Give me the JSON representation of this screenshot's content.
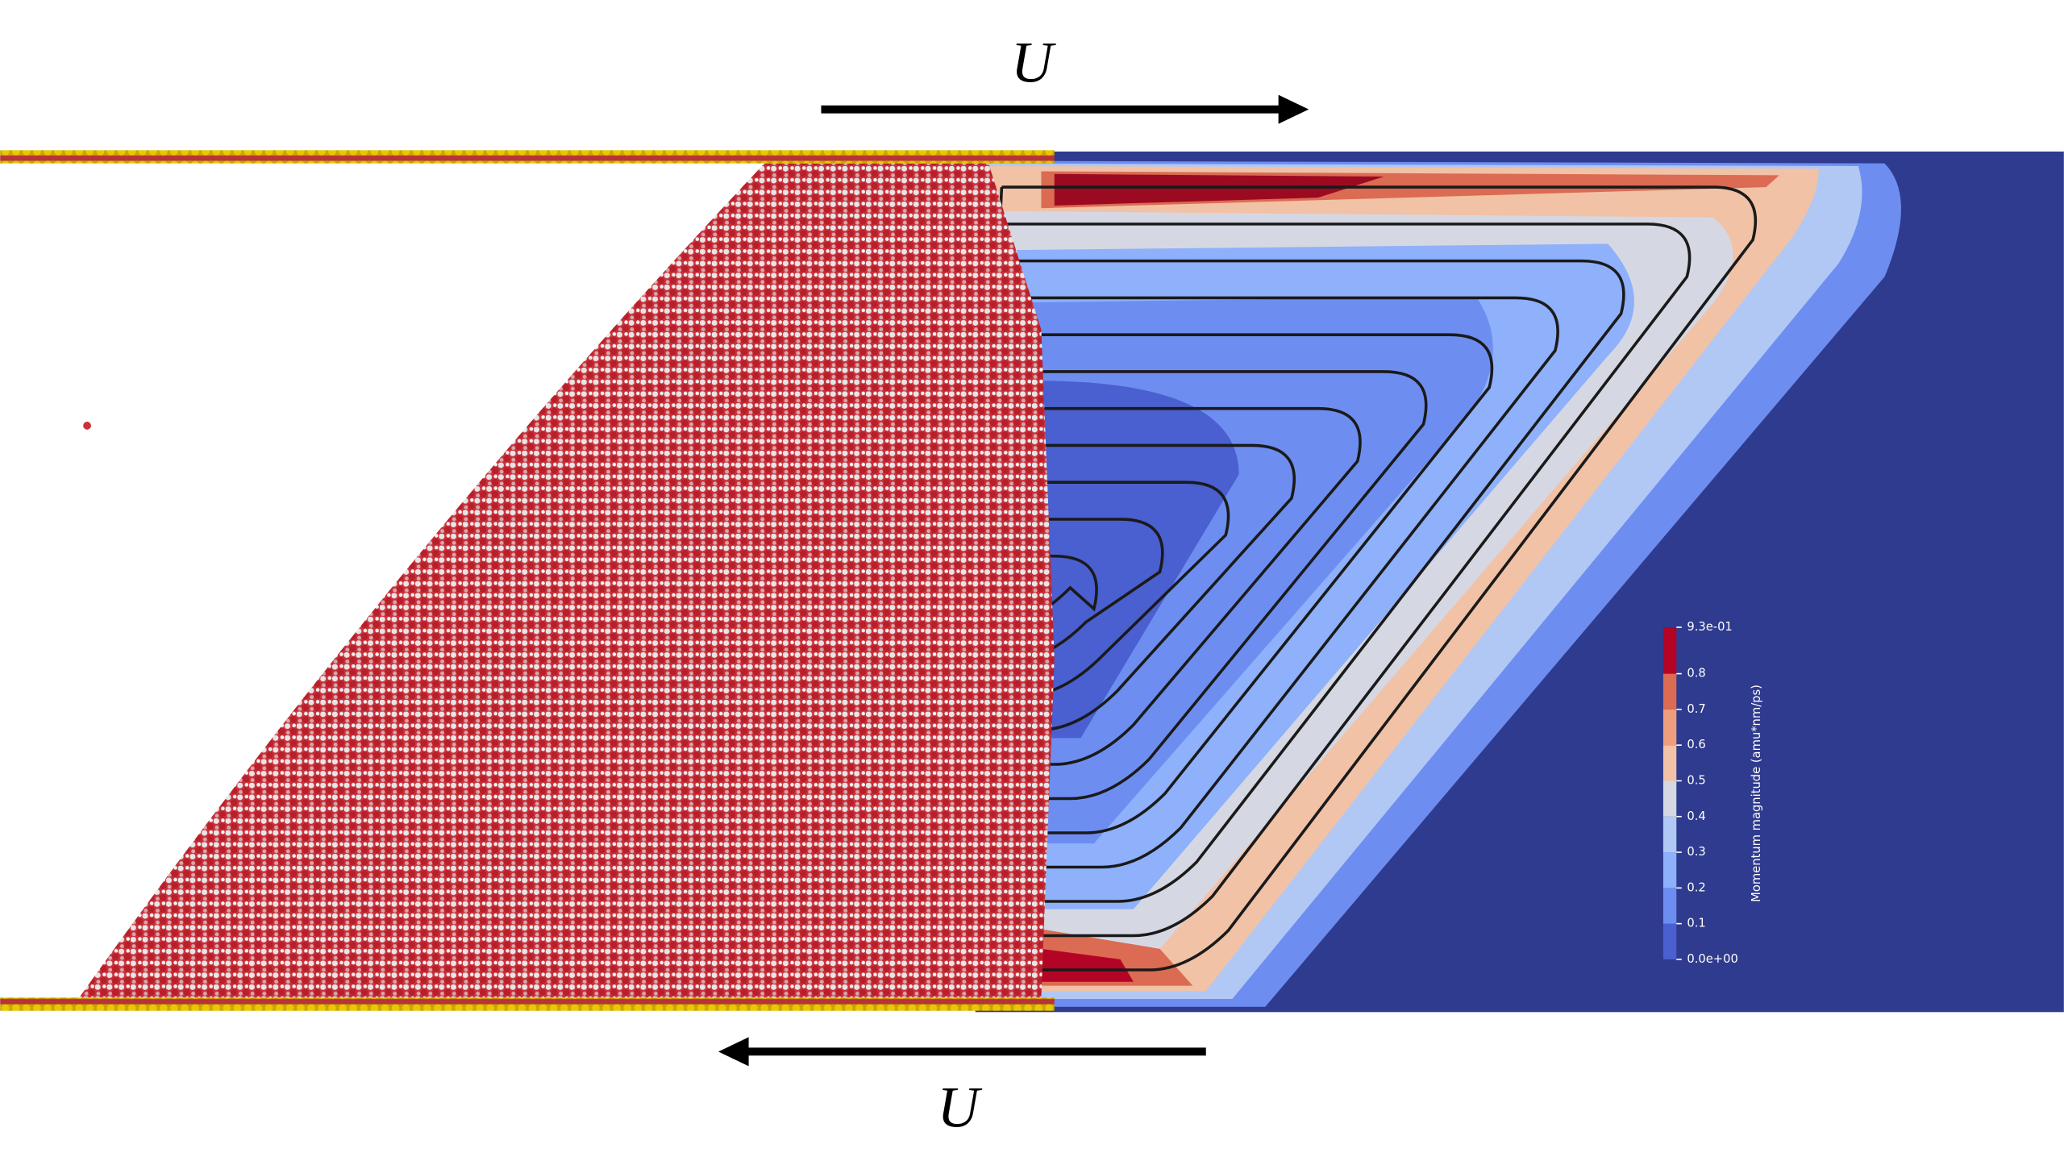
{
  "top_label": "U",
  "bottom_label": "U",
  "colorbar": {
    "title": "Momentum magnitude (amu*nm/ps)",
    "range": [
      0,
      0.93
    ],
    "ticks": [
      {
        "value": 0,
        "label": "0.0e+00"
      },
      0.1,
      0.2,
      0.3,
      0.4,
      0.5,
      0.6,
      0.7,
      0.8,
      {
        "value": 0.93,
        "label": "9.3e-01"
      }
    ],
    "colors": [
      "#4a5fd0",
      "#6d8ef0",
      "#8fb0fb",
      "#b2c8f4",
      "#d5d8e3",
      "#f1c2a6",
      "#ee9e7c",
      "#db6b52",
      "#b40426"
    ]
  }
}
